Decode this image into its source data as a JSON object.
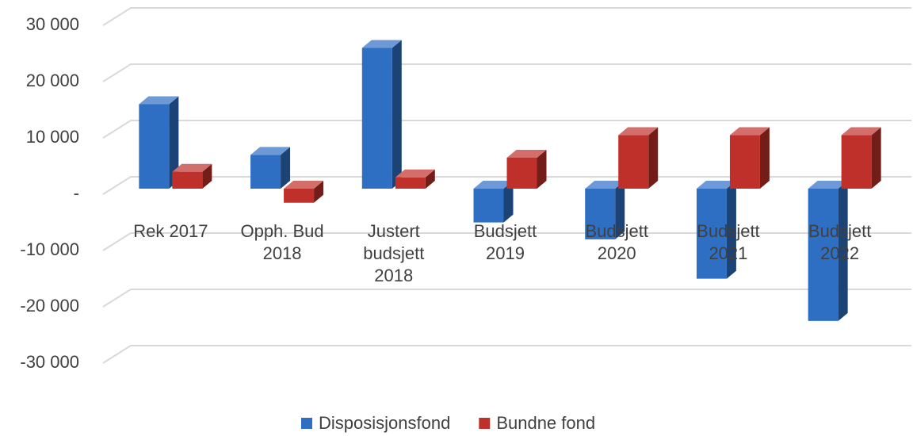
{
  "chart_data": {
    "type": "bar3d",
    "categories": [
      "Rek 2017",
      "Opph. Bud 2018",
      "Justert budsjett 2018",
      "Budsjett 2019",
      "Budsjett 2020",
      "Budsjett 2021",
      "Budsjett 2022"
    ],
    "series": [
      {
        "name": "Disposisjonsfond",
        "color": "#2e6fc4",
        "values": [
          15000,
          6000,
          25000,
          -6000,
          -9000,
          -16000,
          -23500
        ]
      },
      {
        "name": "Bundne fond",
        "color": "#c0302a",
        "values": [
          3000,
          -2500,
          2000,
          5500,
          9500,
          9500,
          9500
        ]
      }
    ],
    "ylim": [
      -30000,
      30000
    ],
    "yticks": [
      {
        "value": -30000,
        "label": "-30 000"
      },
      {
        "value": -20000,
        "label": "-20 000"
      },
      {
        "value": -10000,
        "label": "-10 000"
      },
      {
        "value": 0,
        "label": "-"
      },
      {
        "value": 10000,
        "label": "10 000"
      },
      {
        "value": 20000,
        "label": "20 000"
      },
      {
        "value": 30000,
        "label": "30 000"
      }
    ],
    "grid": true,
    "legend": "bottom"
  }
}
